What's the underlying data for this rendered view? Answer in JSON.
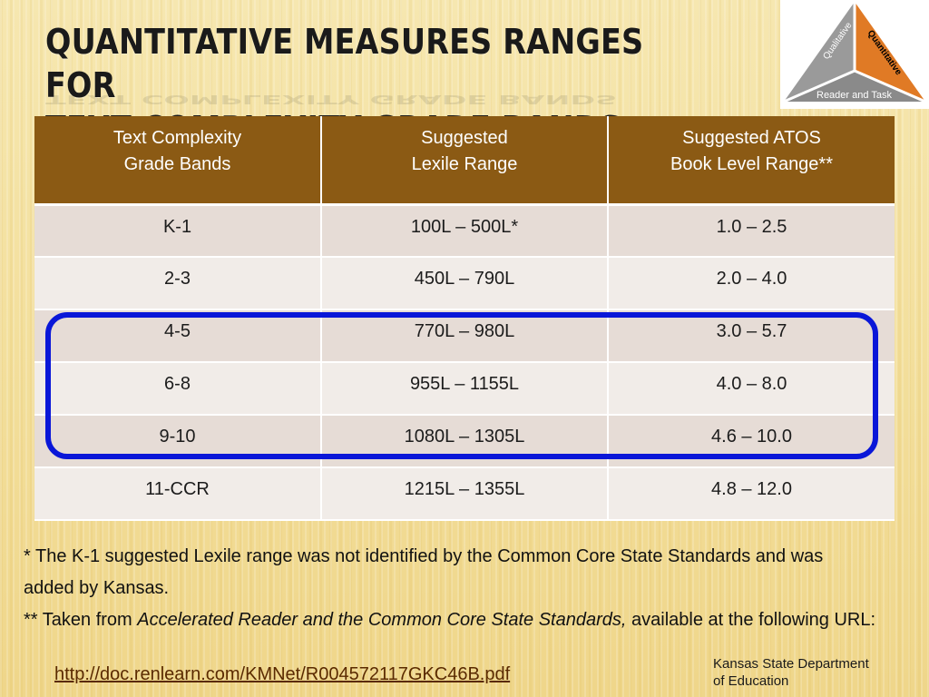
{
  "slide": {
    "title_line1": "QUANTITATIVE MEASURES RANGES FOR",
    "title_line2": "TEXT COMPLEXITY GRADE BANDS"
  },
  "logo": {
    "label_left": "Qualitative",
    "label_right": "Quantitative",
    "label_bottom": "Reader and Task",
    "colors": {
      "left": "#9a9a9a",
      "right": "#e07a25",
      "bottom": "#8a8a8a"
    }
  },
  "table": {
    "headers": [
      {
        "line1": "Text Complexity",
        "line2": "Grade Bands"
      },
      {
        "line1": "Suggested",
        "line2": "Lexile Range"
      },
      {
        "line1": "Suggested ATOS",
        "line2": "Book Level Range**"
      }
    ],
    "rows": [
      [
        "K-1",
        "100L – 500L*",
        "1.0 – 2.5"
      ],
      [
        "2-3",
        "450L – 790L",
        "2.0 – 4.0"
      ],
      [
        "4-5",
        "770L – 980L",
        "3.0 – 5.7"
      ],
      [
        "6-8",
        "955L – 1155L",
        "4.0 – 8.0"
      ],
      [
        "9-10",
        "1080L – 1305L",
        "4.6 – 10.0"
      ],
      [
        "11-CCR",
        "1215L – 1355L",
        "4.8 – 12.0"
      ]
    ],
    "header_color": "#8b5a14",
    "highlight_color": "#0a17d8"
  },
  "notes": {
    "note1": "* The K-1 suggested Lexile range was not identified by the Common Core State Standards and was added by Kansas.",
    "note2_prefix": "** Taken from ",
    "note2_italic": "Accelerated Reader and the Common Core State Standards,",
    "note2_suffix": " available at the following URL:",
    "url": "http://doc.renlearn.com/KMNet/R004572117GKC46B.pdf"
  },
  "credit": {
    "line1": "Kansas State Department",
    "line2": "of Education"
  }
}
